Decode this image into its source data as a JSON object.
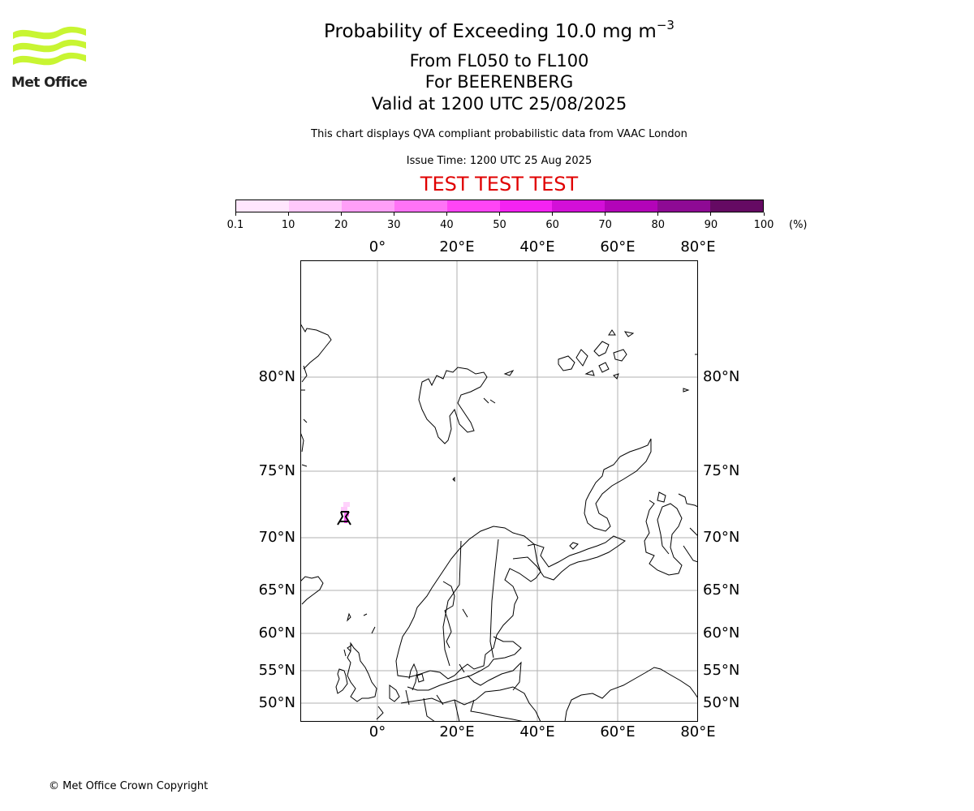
{
  "branding": {
    "logo_text": "Met Office",
    "logo_color": "#c8f532"
  },
  "title": {
    "line1_prefix": "Probability of Exceeding 10.0 mg m",
    "line1_exponent": "−3",
    "line2": "From FL050 to FL100",
    "line3": "For BEERENBERG",
    "line4": "Valid at 1200 UTC 25/08/2025"
  },
  "subtitle": "This chart displays QVA compliant probabilistic data from VAAC London",
  "issue_time": "Issue Time: 1200 UTC 25 Aug 2025",
  "test_banner": "TEST TEST TEST",
  "test_banner_color": "#e00000",
  "colorbar": {
    "labels": [
      "0.1",
      "10",
      "20",
      "30",
      "40",
      "50",
      "60",
      "70",
      "80",
      "90",
      "100"
    ],
    "unit": "(%)",
    "colors": [
      "#ffe6fd",
      "#ffc8fb",
      "#ff9ff8",
      "#ff73f6",
      "#ff45f5",
      "#f423f2",
      "#d30fd8",
      "#b304b8",
      "#8e0a94",
      "#650a63"
    ]
  },
  "map": {
    "lon_labels": [
      "0°",
      "20°E",
      "40°E",
      "60°E",
      "80°E"
    ],
    "lat_labels": [
      "80°N",
      "75°N",
      "70°N",
      "65°N",
      "60°N",
      "55°N",
      "50°N"
    ],
    "volcano": "BEERENBERG",
    "gridline_color": "#b0b0b0"
  },
  "copyright": "© Met Office Crown Copyright"
}
